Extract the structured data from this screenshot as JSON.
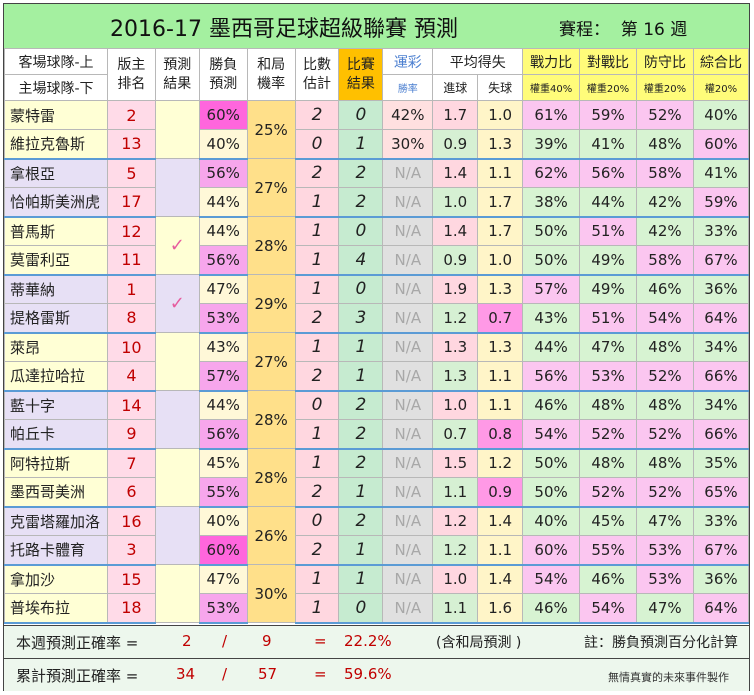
{
  "title": "2016-17 墨西哥足球超級聯賽  預測",
  "schedule": "賽程：  第 16 週",
  "headers": {
    "team_top": "客場球隊-上",
    "team_bottom": "主場球隊-下",
    "rank": "版主\n排名",
    "predict_result": "預測\n結果",
    "win_predict": "勝負\n預測",
    "draw_rate": "和局\n機率",
    "score_est": "比數\n估計",
    "match_result": "比賽\n結果",
    "lottery": "運彩",
    "lottery_sub": "勝率",
    "avg_goals": "平均得失",
    "goals_for": "進球",
    "goals_against": "失球",
    "strength": "戰力比",
    "strength_sub": "權重40%",
    "record": "對戰比",
    "record_sub": "權重20%",
    "defense": "防守比",
    "defense_sub": "權重20%",
    "overall": "綜合比",
    "overall_sub": "權20%"
  },
  "matches": [
    {
      "mark": "",
      "draw": "25%",
      "teams": [
        {
          "name": "蒙特雷",
          "rank": "2",
          "win": "60%",
          "est": "2",
          "res": "0",
          "lot": "42%",
          "gf": "1.7",
          "ga": "1.0",
          "s": "61%",
          "r": "59%",
          "d": "52%",
          "o": "40%"
        },
        {
          "name": "維拉克魯斯",
          "rank": "13",
          "win": "40%",
          "est": "0",
          "res": "1",
          "lot": "30%",
          "gf": "0.9",
          "ga": "1.3",
          "s": "39%",
          "r": "41%",
          "d": "48%",
          "o": "60%"
        }
      ]
    },
    {
      "mark": "",
      "draw": "27%",
      "teams": [
        {
          "name": "拿根亞",
          "rank": "5",
          "win": "56%",
          "est": "2",
          "res": "2",
          "lot": "N/A",
          "gf": "1.4",
          "ga": "1.1",
          "s": "62%",
          "r": "56%",
          "d": "58%",
          "o": "41%"
        },
        {
          "name": "恰帕斯美洲虎",
          "rank": "17",
          "win": "44%",
          "est": "1",
          "res": "2",
          "lot": "N/A",
          "gf": "1.0",
          "ga": "1.7",
          "s": "38%",
          "r": "44%",
          "d": "42%",
          "o": "59%"
        }
      ]
    },
    {
      "mark": "✓",
      "draw": "28%",
      "teams": [
        {
          "name": "普馬斯",
          "rank": "12",
          "win": "44%",
          "est": "1",
          "res": "0",
          "lot": "N/A",
          "gf": "1.4",
          "ga": "1.7",
          "s": "50%",
          "r": "51%",
          "d": "42%",
          "o": "33%"
        },
        {
          "name": "莫雷利亞",
          "rank": "11",
          "win": "56%",
          "est": "1",
          "res": "4",
          "lot": "N/A",
          "gf": "0.9",
          "ga": "1.0",
          "s": "50%",
          "r": "49%",
          "d": "58%",
          "o": "67%"
        }
      ]
    },
    {
      "mark": "✓",
      "draw": "29%",
      "teams": [
        {
          "name": "蒂華納",
          "rank": "1",
          "win": "47%",
          "est": "1",
          "res": "0",
          "lot": "N/A",
          "gf": "1.9",
          "ga": "1.3",
          "s": "57%",
          "r": "49%",
          "d": "46%",
          "o": "36%"
        },
        {
          "name": "提格雷斯",
          "rank": "8",
          "win": "53%",
          "est": "2",
          "res": "3",
          "lot": "N/A",
          "gf": "1.2",
          "ga": "0.7",
          "s": "43%",
          "r": "51%",
          "d": "54%",
          "o": "64%"
        }
      ]
    },
    {
      "mark": "",
      "draw": "27%",
      "teams": [
        {
          "name": "萊昂",
          "rank": "10",
          "win": "43%",
          "est": "1",
          "res": "1",
          "lot": "N/A",
          "gf": "1.3",
          "ga": "1.3",
          "s": "44%",
          "r": "47%",
          "d": "48%",
          "o": "34%"
        },
        {
          "name": "瓜達拉哈拉",
          "rank": "4",
          "win": "57%",
          "est": "2",
          "res": "1",
          "lot": "N/A",
          "gf": "1.3",
          "ga": "1.1",
          "s": "56%",
          "r": "53%",
          "d": "52%",
          "o": "66%"
        }
      ]
    },
    {
      "mark": "",
      "draw": "28%",
      "teams": [
        {
          "name": "藍十字",
          "rank": "14",
          "win": "44%",
          "est": "0",
          "res": "2",
          "lot": "N/A",
          "gf": "1.0",
          "ga": "1.1",
          "s": "46%",
          "r": "48%",
          "d": "48%",
          "o": "34%"
        },
        {
          "name": "帕丘卡",
          "rank": "9",
          "win": "56%",
          "est": "1",
          "res": "2",
          "lot": "N/A",
          "gf": "0.7",
          "ga": "0.8",
          "s": "54%",
          "r": "52%",
          "d": "52%",
          "o": "66%"
        }
      ]
    },
    {
      "mark": "",
      "draw": "28%",
      "teams": [
        {
          "name": "阿特拉斯",
          "rank": "7",
          "win": "45%",
          "est": "1",
          "res": "2",
          "lot": "N/A",
          "gf": "1.5",
          "ga": "1.2",
          "s": "50%",
          "r": "48%",
          "d": "48%",
          "o": "35%"
        },
        {
          "name": "墨西哥美洲",
          "rank": "6",
          "win": "55%",
          "est": "2",
          "res": "1",
          "lot": "N/A",
          "gf": "1.1",
          "ga": "0.9",
          "s": "50%",
          "r": "52%",
          "d": "52%",
          "o": "65%"
        }
      ]
    },
    {
      "mark": "",
      "draw": "26%",
      "teams": [
        {
          "name": "克雷塔羅加洛",
          "rank": "16",
          "win": "40%",
          "est": "0",
          "res": "2",
          "lot": "N/A",
          "gf": "1.2",
          "ga": "1.4",
          "s": "40%",
          "r": "45%",
          "d": "47%",
          "o": "33%"
        },
        {
          "name": "托路卡體育",
          "rank": "3",
          "win": "60%",
          "est": "2",
          "res": "1",
          "lot": "N/A",
          "gf": "1.2",
          "ga": "1.1",
          "s": "60%",
          "r": "55%",
          "d": "53%",
          "o": "67%"
        }
      ]
    },
    {
      "mark": "",
      "draw": "30%",
      "teams": [
        {
          "name": "拿加沙",
          "rank": "15",
          "win": "47%",
          "est": "1",
          "res": "1",
          "lot": "N/A",
          "gf": "1.0",
          "ga": "1.4",
          "s": "54%",
          "r": "46%",
          "d": "53%",
          "o": "36%"
        },
        {
          "name": "普埃布拉",
          "rank": "18",
          "win": "53%",
          "est": "1",
          "res": "0",
          "lot": "N/A",
          "gf": "1.1",
          "ga": "1.6",
          "s": "46%",
          "r": "54%",
          "d": "47%",
          "o": "64%"
        }
      ]
    }
  ],
  "footer": {
    "weekly_label": "本週預測正確率 =",
    "weekly_correct": "2",
    "slash": "/",
    "weekly_total": "9",
    "equals": "=",
    "weekly_rate": "22.2%",
    "weekly_note": "(含和局預測 )",
    "note": "註：勝負預測百分化計算",
    "cum_label": "累計預測正確率 =",
    "cum_correct": "34",
    "cum_total": "57",
    "cum_rate": "59.6%",
    "credit": "無情真實的未來事件製作"
  },
  "colors": {
    "title_bg": "#a4f0a0",
    "accent_red": "#c00000",
    "result_header": "#ffc000"
  }
}
